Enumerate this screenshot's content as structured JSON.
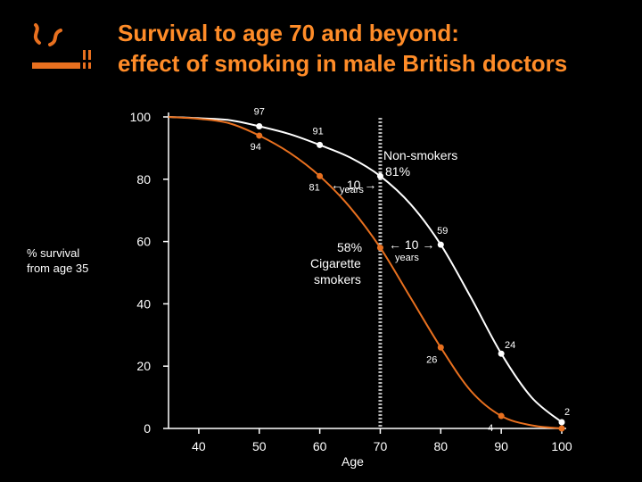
{
  "title": {
    "line1": "Survival to age 70 and beyond:",
    "line2": "effect of smoking in male British doctors"
  },
  "icons": {
    "logo": "cigarette-icon"
  },
  "colors": {
    "non_smokers": "#ffffff",
    "smokers": "#e8701f",
    "title": "#ff8c28",
    "background": "#000000"
  },
  "chart_data": {
    "type": "line",
    "title": "Survival to age 70 and beyond: effect of smoking in male British doctors",
    "xlabel": "Age",
    "ylabel": [
      "% survival",
      "from age 35"
    ],
    "xlim": [
      35,
      100
    ],
    "ylim": [
      0,
      100
    ],
    "xticks": [
      40,
      50,
      60,
      70,
      80,
      90,
      100
    ],
    "yticks": [
      0,
      20,
      40,
      60,
      80,
      100
    ],
    "grid": false,
    "reference_line_x": 70,
    "series": [
      {
        "name": "Non-smokers",
        "color": "#ffffff",
        "curve": [
          [
            35,
            100
          ],
          [
            40,
            99.6
          ],
          [
            45,
            99
          ],
          [
            50,
            97
          ],
          [
            55,
            94.5
          ],
          [
            60,
            91
          ],
          [
            65,
            87
          ],
          [
            70,
            81
          ],
          [
            75,
            72
          ],
          [
            80,
            59
          ],
          [
            85,
            42
          ],
          [
            90,
            24
          ],
          [
            95,
            10
          ],
          [
            100,
            2
          ]
        ],
        "labeled_points": [
          {
            "x": 50,
            "y": 97,
            "label": "97"
          },
          {
            "x": 60,
            "y": 91,
            "label": "91"
          },
          {
            "x": 70,
            "y": 81,
            "label": ""
          },
          {
            "x": 80,
            "y": 59,
            "label": "59"
          },
          {
            "x": 90,
            "y": 24,
            "label": "24"
          },
          {
            "x": 100,
            "y": 2,
            "label": "2"
          }
        ]
      },
      {
        "name": "Cigarette smokers",
        "color": "#e8701f",
        "curve": [
          [
            35,
            100
          ],
          [
            40,
            99.4
          ],
          [
            45,
            98
          ],
          [
            50,
            94
          ],
          [
            55,
            88.5
          ],
          [
            60,
            81
          ],
          [
            65,
            71
          ],
          [
            70,
            58
          ],
          [
            75,
            42
          ],
          [
            80,
            26
          ],
          [
            85,
            12
          ],
          [
            90,
            4
          ],
          [
            95,
            1
          ],
          [
            100,
            0
          ]
        ],
        "labeled_points": [
          {
            "x": 50,
            "y": 94,
            "label": "94"
          },
          {
            "x": 60,
            "y": 81,
            "label": "81"
          },
          {
            "x": 70,
            "y": 58,
            "label": ""
          },
          {
            "x": 80,
            "y": 26,
            "label": "26"
          },
          {
            "x": 90,
            "y": 4,
            "label": "4"
          },
          {
            "x": 100,
            "y": 0,
            "label": ""
          }
        ]
      }
    ],
    "annotations": {
      "non_smokers": [
        "Non-smokers",
        "81%"
      ],
      "smokers": [
        "58%",
        "Cigarette",
        "smokers"
      ],
      "gap_1": {
        "value": "← 10 →",
        "unit": "years"
      },
      "gap_2": {
        "value": "← 10 →",
        "unit": "years"
      }
    }
  }
}
